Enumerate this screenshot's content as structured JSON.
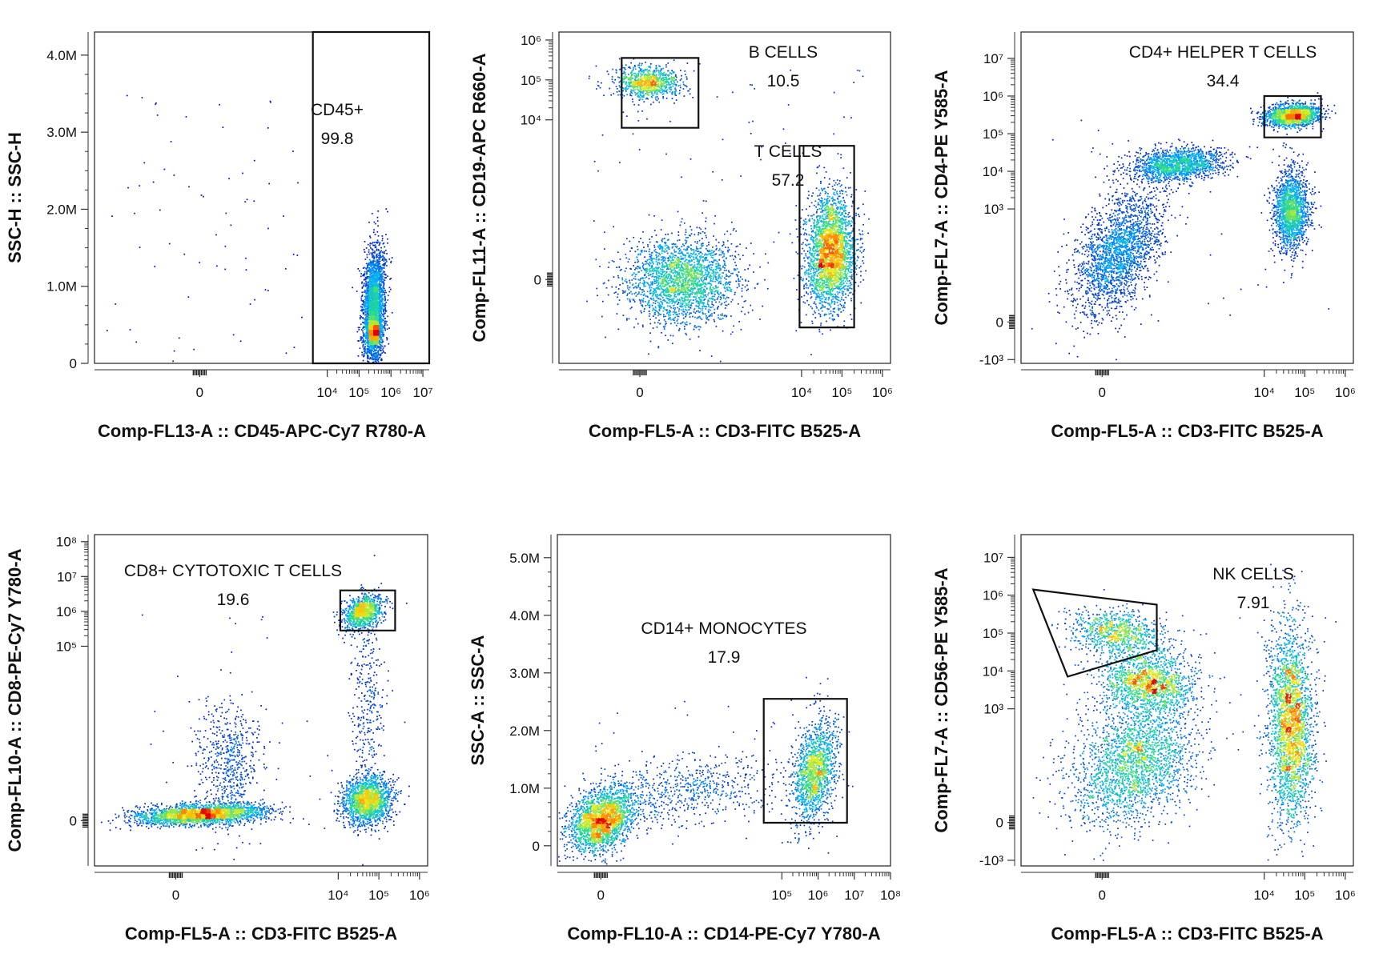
{
  "chart_data": [
    {
      "type": "scatter",
      "xlabel": "Comp-FL13-A :: CD45-APC-Cy7 R780-A",
      "ylabel": "SSC-H :: SSC-H",
      "xscale": "biexponential",
      "yscale": "linear",
      "xticks": [
        {
          "v": 0,
          "label": "0"
        },
        {
          "v": 4,
          "label": "10⁴"
        },
        {
          "v": 5,
          "label": "10⁵"
        },
        {
          "v": 6,
          "label": "10⁶"
        },
        {
          "v": 7,
          "label": "10⁷"
        }
      ],
      "yticks": [
        {
          "v": 0,
          "label": "0"
        },
        {
          "v": 1,
          "label": "1.0M"
        },
        {
          "v": 2,
          "label": "2.0M"
        },
        {
          "v": 3,
          "label": "3.0M"
        },
        {
          "v": 4,
          "label": "4.0M"
        }
      ],
      "xlim": [
        -3.3,
        7.2
      ],
      "ylim": [
        0,
        4.3
      ],
      "gates": [
        {
          "name": "CD45+",
          "value": "99.8",
          "polygon": [
            [
              3.55,
              0
            ],
            [
              7.2,
              0
            ],
            [
              7.2,
              4.3
            ],
            [
              3.55,
              4.3
            ]
          ]
        }
      ],
      "populations": [
        {
          "cx": 5.45,
          "cy": 0.75,
          "sx": 0.17,
          "sy": 0.38,
          "n": 2600,
          "corr": 0.2
        },
        {
          "cx": 5.45,
          "cy": 0.4,
          "sx": 0.1,
          "sy": 0.09,
          "n": 900,
          "corr": 0.0
        }
      ],
      "sparse": {
        "n": 70,
        "x": [
          -3.0,
          3.2
        ],
        "y": [
          0.0,
          3.5
        ]
      }
    },
    {
      "type": "scatter",
      "xlabel": "Comp-FL5-A :: CD3-FITC B525-A",
      "ylabel": "Comp-FL11-A :: CD19-APC R660-A",
      "xscale": "biexponential",
      "yscale": "biexponential",
      "xticks": [
        {
          "v": 0,
          "label": "0"
        },
        {
          "v": 4,
          "label": "10⁴"
        },
        {
          "v": 5,
          "label": "10⁵"
        },
        {
          "v": 6,
          "label": "10⁶"
        }
      ],
      "yticks": [
        {
          "v": 0,
          "label": "0"
        },
        {
          "v": 4,
          "label": "10⁴"
        },
        {
          "v": 5,
          "label": "10⁵"
        },
        {
          "v": 6,
          "label": "10⁶"
        }
      ],
      "xlim": [
        -2.0,
        6.2
      ],
      "ylim": [
        -2.1,
        6.2
      ],
      "gates": [
        {
          "name": "B CELLS",
          "value": "10.5",
          "polygon": [
            [
              -0.45,
              3.8
            ],
            [
              1.45,
              3.8
            ],
            [
              1.45,
              5.55
            ],
            [
              -0.45,
              5.55
            ]
          ]
        },
        {
          "name": "T CELLS",
          "value": "57.2",
          "polygon": [
            [
              3.95,
              -1.2
            ],
            [
              5.3,
              -1.2
            ],
            [
              5.3,
              3.35
            ],
            [
              3.95,
              3.35
            ]
          ]
        }
      ],
      "populations": [
        {
          "cx": 0.2,
          "cy": 4.95,
          "sx": 0.4,
          "sy": 0.2,
          "n": 900,
          "corr": 0.0
        },
        {
          "cx": 1.0,
          "cy": 0.0,
          "sx": 0.7,
          "sy": 0.55,
          "n": 2400,
          "corr": 0.0
        },
        {
          "cx": 4.7,
          "cy": 0.7,
          "sx": 0.3,
          "sy": 0.7,
          "n": 2800,
          "corr": 0.1
        }
      ],
      "sparse": {
        "n": 60,
        "x": [
          -1.5,
          5.8
        ],
        "y": [
          2.5,
          5.5
        ]
      }
    },
    {
      "type": "scatter",
      "xlabel": "Comp-FL5-A :: CD3-FITC B525-A",
      "ylabel": "Comp-FL7-A :: CD4-PE Y585-A",
      "xscale": "biexponential",
      "yscale": "biexponential",
      "xticks": [
        {
          "v": 0,
          "label": "0"
        },
        {
          "v": 4,
          "label": "10⁴"
        },
        {
          "v": 5,
          "label": "10⁵"
        },
        {
          "v": 6,
          "label": "10⁶"
        }
      ],
      "yticks": [
        {
          "v": -1,
          "label": "-10³"
        },
        {
          "v": 0,
          "label": "0"
        },
        {
          "v": 3,
          "label": "10³"
        },
        {
          "v": 4,
          "label": "10⁴"
        },
        {
          "v": 5,
          "label": "10⁵"
        },
        {
          "v": 6,
          "label": "10⁶"
        },
        {
          "v": 7,
          "label": "10⁷"
        }
      ],
      "xlim": [
        -2.0,
        6.2
      ],
      "ylim": [
        -1.1,
        7.7
      ],
      "gates": [
        {
          "name": "CD4+ HELPER T CELLS",
          "value": "34.4",
          "polygon": [
            [
              4.0,
              4.9
            ],
            [
              5.4,
              4.9
            ],
            [
              5.4,
              6.0
            ],
            [
              4.0,
              6.0
            ]
          ]
        }
      ],
      "populations": [
        {
          "cx": 0.4,
          "cy": 1.9,
          "sx": 0.55,
          "sy": 0.85,
          "n": 2200,
          "corr": 0.5
        },
        {
          "cx": 1.85,
          "cy": 4.2,
          "sx": 0.6,
          "sy": 0.22,
          "n": 1500,
          "corr": 0.2
        },
        {
          "cx": 4.7,
          "cy": 5.5,
          "sx": 0.35,
          "sy": 0.15,
          "n": 1600,
          "corr": 0.2
        },
        {
          "cx": 4.65,
          "cy": 3.0,
          "sx": 0.22,
          "sy": 0.55,
          "n": 1700,
          "corr": 0.0
        }
      ],
      "sparse": {
        "n": 40,
        "x": [
          -1.5,
          5.8
        ],
        "y": [
          0.0,
          5.5
        ]
      }
    },
    {
      "type": "scatter",
      "xlabel": "Comp-FL5-A :: CD3-FITC B525-A",
      "ylabel": "Comp-FL10-A :: CD8-PE-Cy7 Y780-A",
      "xscale": "biexponential",
      "yscale": "biexponential",
      "xticks": [
        {
          "v": 0,
          "label": "0"
        },
        {
          "v": 4,
          "label": "10⁴"
        },
        {
          "v": 5,
          "label": "10⁵"
        },
        {
          "v": 6,
          "label": "10⁶"
        }
      ],
      "yticks": [
        {
          "v": 0,
          "label": "0"
        },
        {
          "v": 5,
          "label": "10⁵"
        },
        {
          "v": 6,
          "label": "10⁶"
        },
        {
          "v": 7,
          "label": "10⁷"
        },
        {
          "v": 8,
          "label": "10⁸"
        }
      ],
      "xlim": [
        -2.0,
        6.2
      ],
      "ylim": [
        -1.3,
        8.2
      ],
      "gates": [
        {
          "name": "CD8+ CYTOTOXIC T CELLS",
          "value": "19.6",
          "polygon": [
            [
              4.05,
              5.45
            ],
            [
              5.4,
              5.45
            ],
            [
              5.4,
              6.6
            ],
            [
              4.05,
              6.6
            ]
          ]
        }
      ],
      "populations": [
        {
          "cx": 0.6,
          "cy": 0.2,
          "sx": 0.8,
          "sy": 0.15,
          "n": 2400,
          "corr": 0.3
        },
        {
          "cx": 1.3,
          "cy": 1.6,
          "sx": 0.4,
          "sy": 0.9,
          "n": 600,
          "corr": 0.0
        },
        {
          "cx": 4.6,
          "cy": 6.0,
          "sx": 0.25,
          "sy": 0.25,
          "n": 1000,
          "corr": 0.3
        },
        {
          "cx": 4.7,
          "cy": 0.6,
          "sx": 0.3,
          "sy": 0.35,
          "n": 1700,
          "corr": 0.1
        },
        {
          "cx": 4.7,
          "cy": 3.3,
          "sx": 0.2,
          "sy": 1.3,
          "n": 300,
          "corr": 0.0
        }
      ],
      "sparse": {
        "n": 40,
        "x": [
          -1.5,
          5.8
        ],
        "y": [
          -0.5,
          6.5
        ]
      }
    },
    {
      "type": "scatter",
      "xlabel": "Comp-FL10-A :: CD14-PE-Cy7 Y780-A",
      "ylabel": "SSC-A :: SSC-A",
      "xscale": "biexponential",
      "yscale": "linear",
      "xticks": [
        {
          "v": 0,
          "label": "0"
        },
        {
          "v": 5,
          "label": "10⁵"
        },
        {
          "v": 6,
          "label": "10⁶"
        },
        {
          "v": 7,
          "label": "10⁷"
        },
        {
          "v": 8,
          "label": "10⁸"
        }
      ],
      "yticks": [
        {
          "v": 0,
          "label": "0"
        },
        {
          "v": 1,
          "label": "1.0M"
        },
        {
          "v": 2,
          "label": "2.0M"
        },
        {
          "v": 3,
          "label": "3.0M"
        },
        {
          "v": 4,
          "label": "4.0M"
        },
        {
          "v": 5,
          "label": "5.0M"
        }
      ],
      "xlim": [
        -1.2,
        8.0
      ],
      "ylim": [
        -0.35,
        5.4
      ],
      "gates": [
        {
          "name": "CD14+ MONOCYTES",
          "value": "17.9",
          "polygon": [
            [
              4.5,
              0.4
            ],
            [
              6.8,
              0.4
            ],
            [
              6.8,
              2.55
            ],
            [
              4.5,
              2.55
            ]
          ]
        }
      ],
      "populations": [
        {
          "cx": 0.0,
          "cy": 0.45,
          "sx": 0.45,
          "sy": 0.28,
          "n": 2200,
          "corr": 0.3
        },
        {
          "cx": 2.3,
          "cy": 0.95,
          "sx": 1.4,
          "sy": 0.3,
          "n": 700,
          "corr": 0.3
        },
        {
          "cx": 5.9,
          "cy": 1.3,
          "sx": 0.3,
          "sy": 0.45,
          "n": 1500,
          "corr": 0.3
        }
      ],
      "sparse": {
        "n": 40,
        "x": [
          -0.5,
          6.5
        ],
        "y": [
          0.0,
          2.6
        ]
      }
    },
    {
      "type": "scatter",
      "xlabel": "Comp-FL5-A :: CD3-FITC B525-A",
      "ylabel": "Comp-FL7-A :: CD56-PE Y585-A",
      "xscale": "biexponential",
      "yscale": "biexponential",
      "xticks": [
        {
          "v": 0,
          "label": "0"
        },
        {
          "v": 4,
          "label": "10⁴"
        },
        {
          "v": 5,
          "label": "10⁵"
        },
        {
          "v": 6,
          "label": "10⁶"
        }
      ],
      "yticks": [
        {
          "v": -1,
          "label": "-10³"
        },
        {
          "v": 0,
          "label": "0"
        },
        {
          "v": 3,
          "label": "10³"
        },
        {
          "v": 4,
          "label": "10⁴"
        },
        {
          "v": 5,
          "label": "10⁵"
        },
        {
          "v": 6,
          "label": "10⁶"
        },
        {
          "v": 7,
          "label": "10⁷"
        }
      ],
      "xlim": [
        -2.0,
        6.2
      ],
      "ylim": [
        -1.15,
        7.6
      ],
      "gates": [
        {
          "name": "NK CELLS",
          "value": "7.91",
          "polygon": [
            [
              -1.7,
              6.15
            ],
            [
              1.35,
              5.75
            ],
            [
              1.35,
              4.55
            ],
            [
              -0.85,
              3.85
            ]
          ]
        }
      ],
      "populations": [
        {
          "cx": 0.4,
          "cy": 5.0,
          "sx": 0.6,
          "sy": 0.3,
          "n": 900,
          "corr": -0.2
        },
        {
          "cx": 1.1,
          "cy": 3.7,
          "sx": 0.6,
          "sy": 0.4,
          "n": 1500,
          "corr": 0.0
        },
        {
          "cx": 0.8,
          "cy": 1.6,
          "sx": 0.75,
          "sy": 0.8,
          "n": 2300,
          "corr": 0.3
        },
        {
          "cx": 4.65,
          "cy": 2.6,
          "sx": 0.28,
          "sy": 1.3,
          "n": 2600,
          "corr": 0.0
        }
      ],
      "sparse": {
        "n": 40,
        "x": [
          -1.5,
          5.8
        ],
        "y": [
          0.0,
          6.5
        ]
      }
    }
  ]
}
